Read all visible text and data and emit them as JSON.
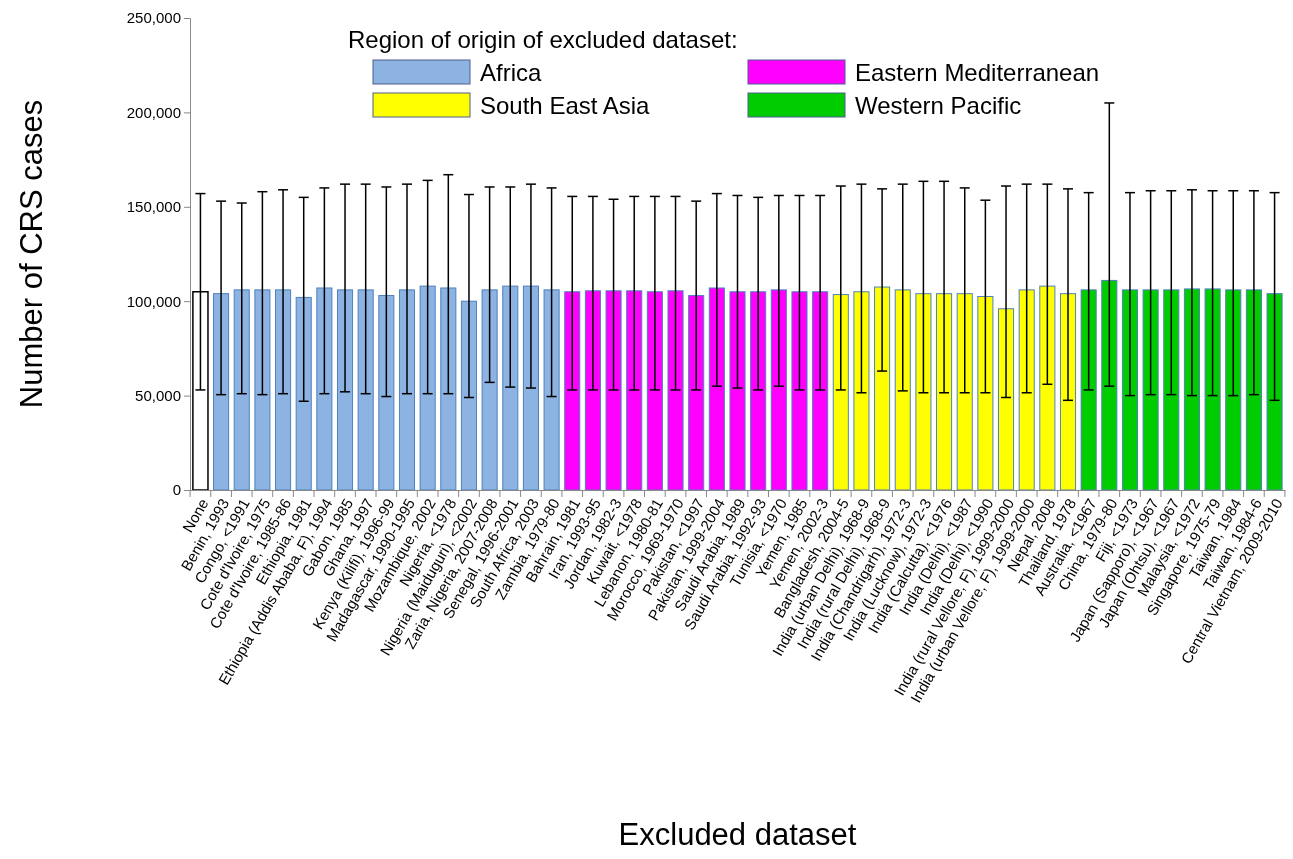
{
  "chart_data": {
    "type": "bar",
    "stacked": true,
    "xlabel": "Excluded dataset",
    "ylabel": "Number of CRS cases",
    "legend_title": "Region of origin of excluded dataset:",
    "legend": "top",
    "grid": false,
    "categories": [
      "None",
      "Benin, 1993",
      "Congo, <1991",
      "Cote d'Ivoire, 1975",
      "Cote d'Ivoire, 1985-86",
      "Ethiopia, 1981",
      "Ethiopia (Addis Ababa, F), 1994",
      "Gabon, 1985",
      "Ghana, 1997",
      "Kenya (Kilifi), 1996-99",
      "Madagascar, 1990-1995",
      "Mozambique, 2002",
      "Nigeria, <1978",
      "Nigeria (Maiduguri), <2002",
      "Zaria, Nigeria, 2007-2008",
      "Senegal, 1996-2001",
      "South Africa, 2003",
      "Zambia, 1979-80",
      "Bahrain, 1981",
      "Iran, 1993-95",
      "Jordan, 1982-3",
      "Kuwait, <1978",
      "Lebanon, 1980-81",
      "Morocco, 1969-1970",
      "Pakistan, <1997",
      "Pakistan, 1999-2004",
      "Saudi Arabia, 1989",
      "Saudi Arabia, 1992-93",
      "Tunisia, <1970",
      "Yemen, 1985",
      "Yemen, 2002-3",
      "Bangladesh, 2004-5",
      "India (urban Delhi), 1968-9",
      "India (rural Delhi), 1968-9",
      "India (Chandrigarh), 1972-3",
      "India (Lucknow), 1972-3",
      "India (Calcutta), <1976",
      "India (Delhi), <1987",
      "India (Delhi), <1990",
      "India (rural Vellore, F), 1999-2000",
      "India (urban Vellore, F), 1999-2000",
      "Nepal, 2008",
      "Thailand, 1978",
      "Australia, <1967",
      "China, 1979-80",
      "Fiji, <1973",
      "Japan (Sapporo), <1967",
      "Japan (Ohtsu), <1967",
      "Malaysia, <1972",
      "Singapore, 1975-79",
      "Taiwan, 1984",
      "Taiwan, 1984-6",
      "Central Vietnam, 2009-2010"
    ],
    "ylim": [
      0,
      250000
    ],
    "yticks": [
      0,
      {
        "value": 50000,
        "label": "50,000"
      },
      {
        "value": 100000,
        "label": "100,000"
      },
      {
        "value": 150000,
        "label": "150,000"
      },
      {
        "value": 200000,
        "label": "200,000"
      },
      {
        "value": 250000,
        "label": "250,000"
      }
    ],
    "series": [
      {
        "color": "#ffffff",
        "values": [
          105000,
          null,
          null,
          null,
          null,
          null,
          null,
          null,
          null,
          null,
          null,
          null,
          null,
          null,
          null,
          null,
          null,
          null,
          null,
          null,
          null,
          null,
          null,
          null,
          null,
          null,
          null,
          null,
          null,
          null,
          null,
          null,
          null,
          null,
          null,
          null,
          null,
          null,
          null,
          null,
          null,
          null,
          null,
          null,
          null,
          null,
          null,
          null,
          null,
          null,
          null,
          null,
          null
        ],
        "errors": [
          [
            53000,
            157000
          ],
          null,
          null,
          null,
          null,
          null,
          null,
          null,
          null,
          null,
          null,
          null,
          null,
          null,
          null,
          null,
          null,
          null,
          null,
          null,
          null,
          null,
          null,
          null,
          null,
          null,
          null,
          null,
          null,
          null,
          null,
          null,
          null,
          null,
          null,
          null,
          null,
          null,
          null,
          null,
          null,
          null,
          null,
          null,
          null,
          null,
          null,
          null,
          null,
          null,
          null,
          null,
          null
        ]
      },
      {
        "name": "Africa",
        "color": "#8db3e2",
        "values": [
          null,
          104000,
          106000,
          106000,
          106000,
          102000,
          107000,
          106000,
          106000,
          103000,
          106000,
          108000,
          107000,
          100000,
          106000,
          108000,
          108000,
          106000,
          null,
          null,
          null,
          null,
          null,
          null,
          null,
          null,
          null,
          null,
          null,
          null,
          null,
          null,
          null,
          null,
          null,
          null,
          null,
          null,
          null,
          null,
          null,
          null,
          null,
          null,
          null,
          null,
          null,
          null,
          null,
          null,
          null,
          null,
          null
        ],
        "errors": [
          null,
          [
            50500,
            153000
          ],
          [
            51000,
            152000
          ],
          [
            50500,
            158000
          ],
          [
            51000,
            159000
          ],
          [
            47000,
            155000
          ],
          [
            51000,
            160000
          ],
          [
            52000,
            162000
          ],
          [
            51000,
            162000
          ],
          [
            49500,
            160500
          ],
          [
            51000,
            162000
          ],
          [
            51000,
            164000
          ],
          [
            51000,
            167000
          ],
          [
            49000,
            156500
          ],
          [
            57000,
            160500
          ],
          [
            54500,
            160500
          ],
          [
            54000,
            162000
          ],
          [
            49500,
            160000
          ],
          null,
          null,
          null,
          null,
          null,
          null,
          null,
          null,
          null,
          null,
          null,
          null,
          null,
          null,
          null,
          null,
          null,
          null,
          null,
          null,
          null,
          null,
          null,
          null,
          null,
          null,
          null,
          null,
          null,
          null,
          null,
          null,
          null,
          null,
          null
        ]
      },
      {
        "name": "Eastern Mediterranean",
        "color": "#ff00ff",
        "values": [
          null,
          null,
          null,
          null,
          null,
          null,
          null,
          null,
          null,
          null,
          null,
          null,
          null,
          null,
          null,
          null,
          null,
          null,
          105000,
          105500,
          105500,
          105500,
          105000,
          105500,
          103000,
          107000,
          105000,
          105000,
          106000,
          105000,
          105000,
          null,
          null,
          null,
          null,
          null,
          null,
          null,
          null,
          null,
          null,
          null,
          null,
          null,
          null,
          null,
          null,
          null,
          null,
          null,
          null,
          null,
          null
        ],
        "errors": [
          null,
          null,
          null,
          null,
          null,
          null,
          null,
          null,
          null,
          null,
          null,
          null,
          null,
          null,
          null,
          null,
          null,
          null,
          [
            53000,
            155500
          ],
          [
            53000,
            155500
          ],
          [
            53000,
            154000
          ],
          [
            53000,
            155500
          ],
          [
            53000,
            155500
          ],
          [
            53000,
            155500
          ],
          [
            53000,
            153000
          ],
          [
            55000,
            157000
          ],
          [
            54000,
            156000
          ],
          [
            53000,
            155000
          ],
          [
            55000,
            156000
          ],
          [
            53000,
            156000
          ],
          [
            53000,
            156000
          ],
          null,
          null,
          null,
          null,
          null,
          null,
          null,
          null,
          null,
          null,
          null,
          null,
          null,
          null,
          null,
          null,
          null,
          null,
          null,
          null,
          null,
          null
        ]
      },
      {
        "name": "South East Asia",
        "color": "#ffff00",
        "values": [
          null,
          null,
          null,
          null,
          null,
          null,
          null,
          null,
          null,
          null,
          null,
          null,
          null,
          null,
          null,
          null,
          null,
          null,
          null,
          null,
          null,
          null,
          null,
          null,
          null,
          null,
          null,
          null,
          null,
          null,
          null,
          103500,
          105000,
          107500,
          106000,
          104000,
          104000,
          104000,
          102500,
          96000,
          106000,
          108000,
          104000,
          null,
          null,
          null,
          null,
          null,
          null,
          null,
          null,
          null,
          null
        ],
        "errors": [
          null,
          null,
          null,
          null,
          null,
          null,
          null,
          null,
          null,
          null,
          null,
          null,
          null,
          null,
          null,
          null,
          null,
          null,
          null,
          null,
          null,
          null,
          null,
          null,
          null,
          null,
          null,
          null,
          null,
          null,
          null,
          [
            53000,
            161000
          ],
          [
            51500,
            162000
          ],
          [
            63000,
            159500
          ],
          [
            52500,
            162000
          ],
          [
            51500,
            163500
          ],
          [
            51500,
            163500
          ],
          [
            51500,
            160000
          ],
          [
            51500,
            153500
          ],
          [
            49000,
            161000
          ],
          [
            51500,
            162000
          ],
          [
            56000,
            162000
          ],
          [
            47500,
            159500
          ],
          null,
          null,
          null,
          null,
          null,
          null,
          null,
          null,
          null,
          null
        ]
      },
      {
        "name": "Western Pacific",
        "color": "#00cc00",
        "values": [
          null,
          null,
          null,
          null,
          null,
          null,
          null,
          null,
          null,
          null,
          null,
          null,
          null,
          null,
          null,
          null,
          null,
          null,
          null,
          null,
          null,
          null,
          null,
          null,
          null,
          null,
          null,
          null,
          null,
          null,
          null,
          null,
          null,
          null,
          null,
          null,
          null,
          null,
          null,
          null,
          null,
          null,
          null,
          106000,
          111000,
          106000,
          106000,
          106000,
          106500,
          106500,
          106000,
          106000,
          104000
        ],
        "errors": [
          null,
          null,
          null,
          null,
          null,
          null,
          null,
          null,
          null,
          null,
          null,
          null,
          null,
          null,
          null,
          null,
          null,
          null,
          null,
          null,
          null,
          null,
          null,
          null,
          null,
          null,
          null,
          null,
          null,
          null,
          null,
          null,
          null,
          null,
          null,
          null,
          null,
          null,
          null,
          null,
          null,
          null,
          null,
          [
            53000,
            157500
          ],
          [
            55000,
            205000
          ],
          [
            50000,
            157500
          ],
          [
            50500,
            158500
          ],
          [
            50500,
            158500
          ],
          [
            50000,
            159000
          ],
          [
            50000,
            158500
          ],
          [
            50000,
            158500
          ],
          [
            50500,
            158500
          ],
          [
            47500,
            157500
          ]
        ]
      }
    ]
  }
}
